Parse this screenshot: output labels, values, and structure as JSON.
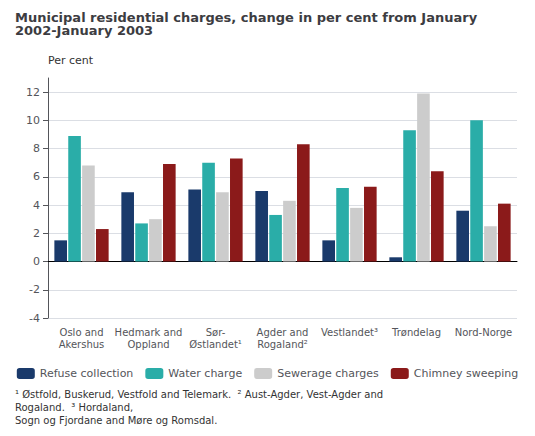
{
  "chart_data": {
    "type": "bar",
    "title": "Municipal residential charges, change in per cent from January 2002-January 2003",
    "ylabel": "Per cent",
    "categories": [
      "Oslo and\nAkershus",
      "Hedmark and\nOppland",
      "Sør-\nØstlandet¹",
      "Agder and\nRogaland²",
      "Vestlandet³",
      "Trøndelag",
      "Nord-Norge"
    ],
    "series": [
      {
        "name": "Refuse collection",
        "color": "#1a3a6b",
        "values": [
          1.5,
          4.9,
          5.1,
          5.0,
          1.5,
          0.3,
          3.6
        ]
      },
      {
        "name": "Water charge",
        "color": "#2aada8",
        "values": [
          8.9,
          2.7,
          7.0,
          3.3,
          5.2,
          9.3,
          10.0
        ]
      },
      {
        "name": "Sewerage charges",
        "color": "#cccccc",
        "values": [
          6.8,
          3.0,
          4.9,
          4.3,
          3.8,
          11.9,
          2.5
        ]
      },
      {
        "name": "Chimney sweeping",
        "color": "#8b1a1a",
        "values": [
          2.3,
          6.9,
          7.3,
          8.3,
          5.3,
          6.4,
          4.1
        ]
      }
    ],
    "ylim": [
      -4,
      13
    ],
    "yticks": [
      -4,
      -2,
      0,
      2,
      4,
      6,
      8,
      10,
      12
    ],
    "grid": true,
    "legend": "bottom",
    "footnote": "¹ Østfold, Buskerud, Vestfold and Telemark.  ² Aust-Agder, Vest-Agder and Rogaland.  ³ Hordaland,\nSogn og Fjordane and Møre og Romsdal."
  }
}
